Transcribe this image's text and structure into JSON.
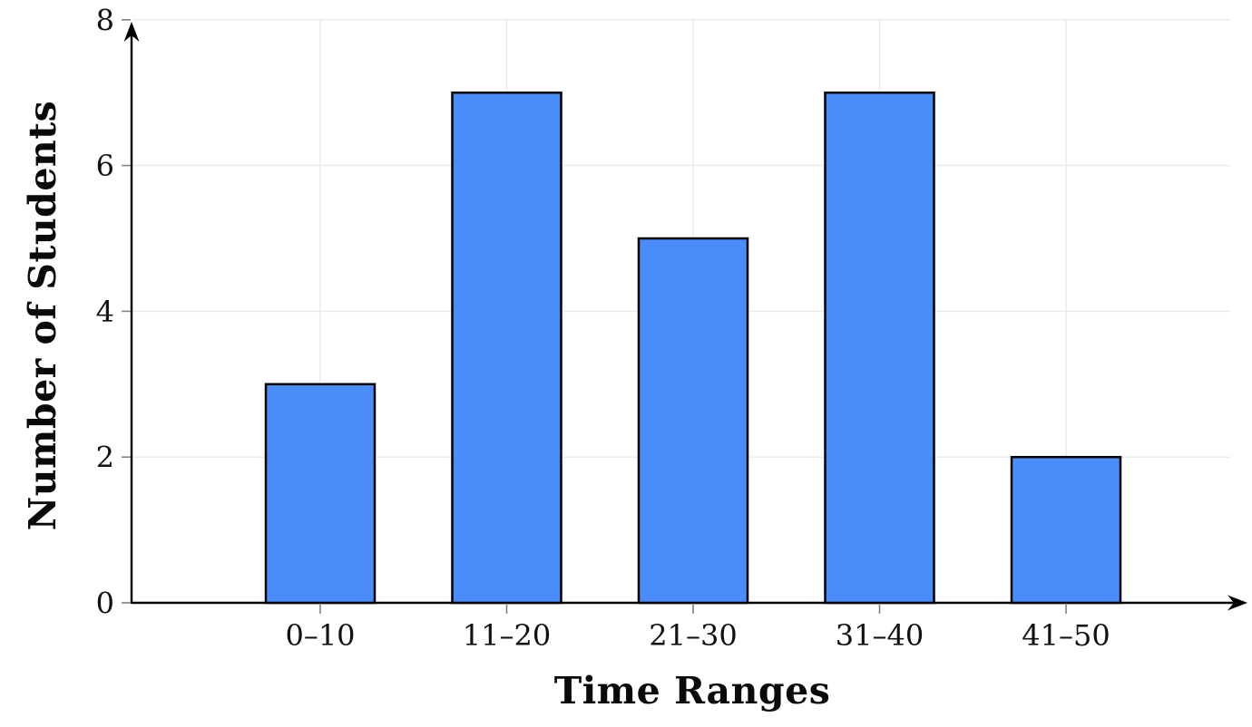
{
  "chart_data": {
    "type": "bar",
    "title": "",
    "categories": [
      "0–10",
      "11–20",
      "21–30",
      "31–40",
      "41–50"
    ],
    "values": [
      3,
      7,
      5,
      7,
      2
    ],
    "xlabel": "Time Ranges",
    "ylabel": "Number of Students",
    "ylim": [
      0,
      8
    ],
    "yticks": [
      0,
      2,
      4,
      6,
      8
    ],
    "grid": "both",
    "legend": "none",
    "colors": {
      "bar_fill": "#4a8cf9",
      "bar_stroke": "#000000",
      "gridline": "#e9e9e9",
      "axis": "#000000",
      "tick_mark": "#808080",
      "text": "#111111"
    }
  }
}
